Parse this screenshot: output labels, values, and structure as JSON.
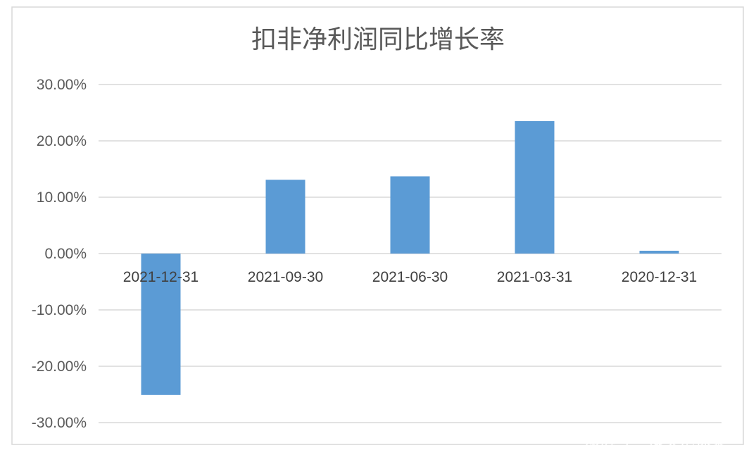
{
  "chart_data": {
    "type": "bar",
    "title": "扣非净利润同比增长率",
    "categories": [
      "2021-12-31",
      "2021-09-30",
      "2021-06-30",
      "2021-03-31",
      "2020-12-31"
    ],
    "series": [
      {
        "values": [
          -25.1,
          13.1,
          13.7,
          23.5,
          0.5
        ]
      }
    ],
    "y_ticks": [
      "30.00%",
      "20.00%",
      "10.00%",
      "0.00%",
      "-10.00%",
      "-20.00%",
      "-30.00%"
    ],
    "ylim": [
      -30,
      30
    ],
    "grid": true,
    "bar_color": "#5b9bd5"
  },
  "watermark": {
    "brand": "澎湃号",
    "account": "@美港探案"
  }
}
